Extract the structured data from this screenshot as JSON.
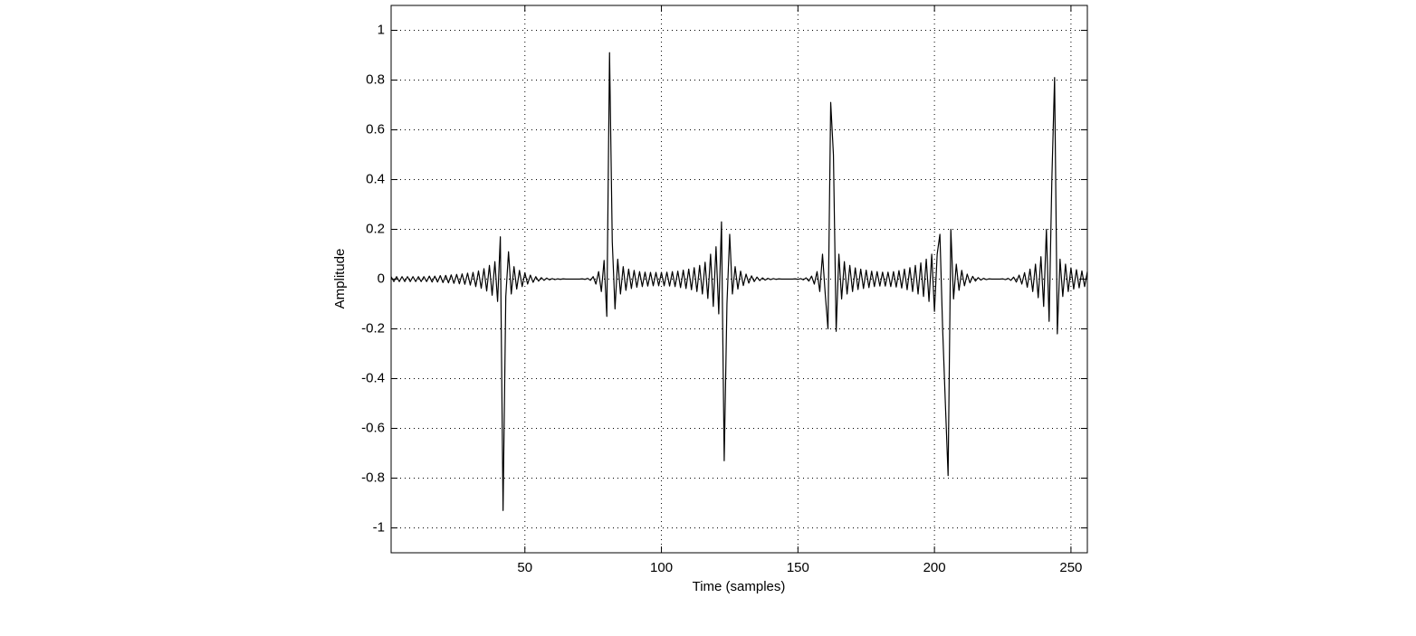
{
  "chart_data": {
    "type": "line",
    "xlabel": "Time (samples)",
    "ylabel": "Amplitude",
    "color": "#000000",
    "grid": true,
    "xlim": [
      1,
      256
    ],
    "ylim": [
      -1.1,
      1.1
    ],
    "xticks": [
      50,
      100,
      150,
      200,
      250
    ],
    "yticks": [
      -1,
      -0.8,
      -0.6,
      -0.4,
      -0.2,
      0,
      0.2,
      0.4,
      0.6,
      0.8,
      1
    ],
    "x": [
      1,
      2,
      3,
      4,
      5,
      6,
      7,
      8,
      9,
      10,
      11,
      12,
      13,
      14,
      15,
      16,
      17,
      18,
      19,
      20,
      21,
      22,
      23,
      24,
      25,
      26,
      27,
      28,
      29,
      30,
      31,
      32,
      33,
      34,
      35,
      36,
      37,
      38,
      39,
      40,
      41,
      42,
      43,
      44,
      45,
      46,
      47,
      48,
      49,
      50,
      51,
      52,
      53,
      54,
      55,
      56,
      57,
      58,
      59,
      60,
      61,
      62,
      63,
      64,
      65,
      66,
      67,
      68,
      69,
      70,
      71,
      72,
      73,
      74,
      75,
      76,
      77,
      78,
      79,
      80,
      81,
      82,
      83,
      84,
      85,
      86,
      87,
      88,
      89,
      90,
      91,
      92,
      93,
      94,
      95,
      96,
      97,
      98,
      99,
      100,
      101,
      102,
      103,
      104,
      105,
      106,
      107,
      108,
      109,
      110,
      111,
      112,
      113,
      114,
      115,
      116,
      117,
      118,
      119,
      120,
      121,
      122,
      123,
      124,
      125,
      126,
      127,
      128,
      129,
      130,
      131,
      132,
      133,
      134,
      135,
      136,
      137,
      138,
      139,
      140,
      141,
      142,
      143,
      144,
      145,
      146,
      147,
      148,
      149,
      150,
      151,
      152,
      153,
      154,
      155,
      156,
      157,
      158,
      159,
      160,
      161,
      162,
      163,
      164,
      165,
      166,
      167,
      168,
      169,
      170,
      171,
      172,
      173,
      174,
      175,
      176,
      177,
      178,
      179,
      180,
      181,
      182,
      183,
      184,
      185,
      186,
      187,
      188,
      189,
      190,
      191,
      192,
      193,
      194,
      195,
      196,
      197,
      198,
      199,
      200,
      201,
      202,
      203,
      204,
      205,
      206,
      207,
      208,
      209,
      210,
      211,
      212,
      213,
      214,
      215,
      216,
      217,
      218,
      219,
      220,
      221,
      222,
      223,
      224,
      225,
      226,
      227,
      228,
      229,
      230,
      231,
      232,
      233,
      234,
      235,
      236,
      237,
      238,
      239,
      240,
      241,
      242,
      243,
      244,
      245,
      246,
      247,
      248,
      249,
      250,
      251,
      252,
      253,
      254,
      255,
      256
    ],
    "values": [
      0.01,
      -0.01,
      0.01,
      -0.01,
      0.01,
      -0.01,
      0.01,
      -0.01,
      0.01,
      -0.01,
      0.01,
      -0.01,
      0.01,
      -0.01,
      0.012,
      -0.012,
      0.012,
      -0.012,
      0.014,
      -0.014,
      0.015,
      -0.015,
      0.017,
      -0.017,
      0.019,
      -0.019,
      0.021,
      -0.021,
      0.024,
      -0.024,
      0.027,
      -0.03,
      0.033,
      -0.037,
      0.042,
      -0.048,
      0.055,
      -0.065,
      0.07,
      -0.09,
      0.17,
      -0.93,
      -0.07,
      0.11,
      -0.06,
      0.05,
      -0.04,
      0.035,
      -0.03,
      0.025,
      -0.02,
      0.016,
      -0.013,
      0.01,
      -0.008,
      0.006,
      -0.005,
      0.004,
      -0.003,
      0.002,
      -0.002,
      0.001,
      -0.001,
      0.001,
      0,
      0,
      0,
      0,
      0,
      0,
      0.001,
      -0.001,
      0.003,
      -0.005,
      0.01,
      -0.02,
      0.03,
      -0.05,
      0.075,
      -0.15,
      0.91,
      0.15,
      -0.12,
      0.08,
      -0.06,
      0.05,
      -0.045,
      0.04,
      -0.038,
      0.035,
      -0.033,
      0.03,
      -0.03,
      0.028,
      -0.028,
      0.027,
      -0.027,
      0.027,
      -0.027,
      0.027,
      -0.027,
      0.028,
      -0.028,
      0.03,
      -0.03,
      0.032,
      -0.034,
      0.036,
      -0.038,
      0.04,
      -0.043,
      0.046,
      -0.05,
      0.055,
      -0.06,
      0.068,
      -0.078,
      0.1,
      -0.11,
      0.13,
      -0.14,
      0.23,
      -0.73,
      -0.1,
      0.18,
      -0.06,
      0.05,
      -0.04,
      0.032,
      -0.026,
      0.02,
      -0.016,
      0.013,
      -0.01,
      0.008,
      -0.006,
      0.005,
      -0.004,
      0.003,
      -0.002,
      0.002,
      -0.001,
      0.001,
      0,
      0,
      0,
      0,
      0,
      0.001,
      -0.001,
      0.002,
      -0.003,
      0.005,
      -0.008,
      0.012,
      -0.02,
      0.03,
      -0.05,
      0.1,
      -0.06,
      -0.2,
      0.71,
      0.5,
      -0.21,
      0.1,
      -0.08,
      0.07,
      -0.06,
      0.055,
      -0.05,
      0.045,
      -0.042,
      0.04,
      -0.038,
      0.036,
      -0.034,
      0.032,
      -0.03,
      0.03,
      -0.028,
      0.028,
      -0.028,
      0.028,
      -0.03,
      0.03,
      -0.032,
      0.034,
      -0.036,
      0.04,
      -0.043,
      0.046,
      -0.05,
      0.055,
      -0.06,
      0.065,
      -0.07,
      0.08,
      -0.09,
      0.1,
      -0.13,
      0.1,
      0.18,
      -0.2,
      -0.5,
      -0.79,
      0.2,
      -0.08,
      0.06,
      -0.045,
      0.035,
      -0.027,
      0.02,
      -0.015,
      0.011,
      -0.008,
      0.006,
      -0.004,
      0.003,
      -0.002,
      0.001,
      0,
      0,
      0,
      0,
      0.001,
      -0.002,
      0.003,
      -0.005,
      0.008,
      -0.012,
      0.016,
      -0.02,
      0.026,
      -0.033,
      0.04,
      -0.05,
      0.06,
      -0.075,
      0.09,
      -0.11,
      0.2,
      -0.17,
      0.4,
      0.81,
      -0.22,
      0.08,
      -0.07,
      0.06,
      -0.05,
      0.045,
      -0.04,
      0.038,
      -0.035,
      0.033,
      -0.03,
      0.03
    ]
  }
}
